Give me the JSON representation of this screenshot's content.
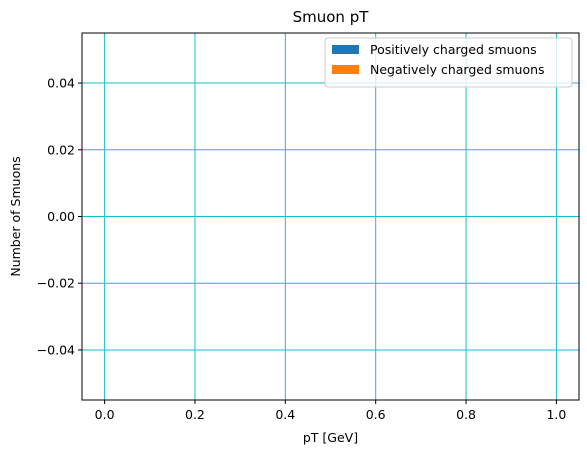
{
  "chart_data": {
    "type": "bar",
    "title": "Smuon pT",
    "xlabel": "pT [GeV]",
    "ylabel": "Number of Smuons",
    "xlim": [
      -0.05,
      1.05
    ],
    "ylim": [
      -0.055,
      0.055
    ],
    "xticks": [
      0.0,
      0.2,
      0.4,
      0.6,
      0.8,
      1.0
    ],
    "xtick_labels": [
      "0.0",
      "0.2",
      "0.4",
      "0.6",
      "0.8",
      "1.0"
    ],
    "yticks": [
      -0.04,
      -0.02,
      0.0,
      0.02,
      0.04
    ],
    "ytick_labels": [
      "−0.04",
      "−0.02",
      "0.00",
      "0.02",
      "0.04"
    ],
    "grid": true,
    "grid_color": "#17becf",
    "legend_position": "top-right",
    "series": [
      {
        "name": "Positively charged smuons",
        "color": "#1f77b4",
        "values": []
      },
      {
        "name": "Negatively charged smuons",
        "color": "#ff7f0e",
        "values": []
      }
    ]
  }
}
